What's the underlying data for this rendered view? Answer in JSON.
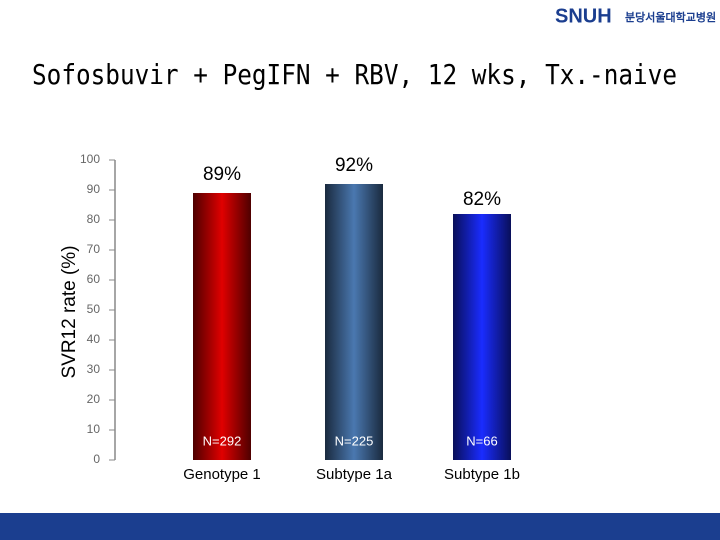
{
  "logo": {
    "mark": "SNUH",
    "name": "분당서울대학교병원"
  },
  "chart_data": {
    "type": "bar",
    "title": "Sofosbuvir + PegIFN + RBV, 12 wks, Tx.-naive",
    "y_label": "SVR12 rate (%)",
    "categories": [
      "Genotype 1",
      "Subtype 1a",
      "Subtype 1b"
    ],
    "values": [
      89,
      92,
      82
    ],
    "value_labels": [
      "89%",
      "92%",
      "82%"
    ],
    "n_labels": [
      "N=292",
      "N=225",
      "N=66"
    ],
    "colors": [
      "#e00000",
      "#4a78b0",
      "#1a2cff"
    ],
    "ylim": [
      0,
      100
    ],
    "yticks": [
      0,
      10,
      20,
      30,
      40,
      50,
      60,
      70,
      80,
      90,
      100
    ],
    "grid": false
  }
}
